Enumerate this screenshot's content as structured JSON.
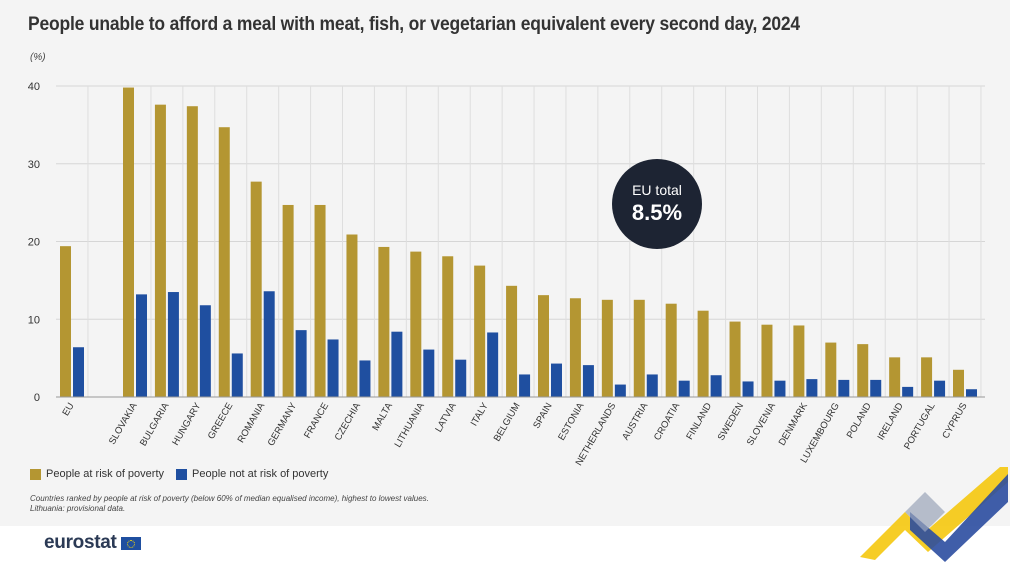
{
  "title": "People unable to afford a meal with meat, fish, or vegetarian equivalent every second day, 2024",
  "unit": "(%)",
  "badge": {
    "line1": "EU total",
    "line2": "8.5%"
  },
  "legend": [
    {
      "label": "People at risk of poverty",
      "color": "#b49632"
    },
    {
      "label": "People not at risk of poverty",
      "color": "#1f4fa0"
    }
  ],
  "notes": [
    "Countries ranked by people at risk of poverty (below 60% of median equalised income), highest to lowest values.",
    "Lithuania: provisional data."
  ],
  "logo": {
    "text": "eurostat"
  },
  "chart_data": {
    "type": "bar",
    "ylim": [
      0,
      40
    ],
    "yticks": [
      0,
      10,
      20,
      30,
      40
    ],
    "grid": true,
    "legend_position": "bottom-left",
    "categories": [
      "EU",
      "SLOVAKIA",
      "BULGARIA",
      "HUNGARY",
      "GREECE",
      "ROMANIA",
      "GERMANY",
      "FRANCE",
      "CZECHIA",
      "MALTA",
      "LITHUANIA",
      "LATVIA",
      "ITALY",
      "BELGIUM",
      "SPAIN",
      "ESTONIA",
      "NETHERLANDS",
      "AUSTRIA",
      "CROATIA",
      "FINLAND",
      "SWEDEN",
      "SLOVENIA",
      "DENMARK",
      "LUXEMBOURG",
      "POLAND",
      "IRELAND",
      "PORTUGAL",
      "CYPRUS"
    ],
    "series": [
      {
        "name": "People at risk of poverty",
        "color": "#b49632",
        "values": [
          19.4,
          39.8,
          37.6,
          37.4,
          34.7,
          27.7,
          24.7,
          24.7,
          20.9,
          19.3,
          18.7,
          18.1,
          16.9,
          14.3,
          13.1,
          12.7,
          12.5,
          12.5,
          12.0,
          11.1,
          9.7,
          9.3,
          9.2,
          7.0,
          6.8,
          5.1,
          5.1,
          3.5
        ]
      },
      {
        "name": "People not at risk of poverty",
        "color": "#1f4fa0",
        "values": [
          6.4,
          13.2,
          13.5,
          11.8,
          5.6,
          13.6,
          8.6,
          7.4,
          4.7,
          8.4,
          6.1,
          4.8,
          8.3,
          2.9,
          4.3,
          4.1,
          1.6,
          2.9,
          2.1,
          2.8,
          2.0,
          2.1,
          2.3,
          2.2,
          2.2,
          1.3,
          2.1,
          1.0
        ]
      }
    ]
  }
}
